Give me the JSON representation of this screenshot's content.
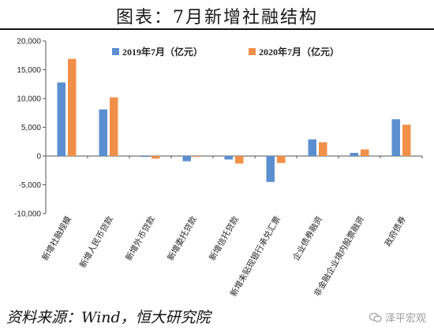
{
  "title": "图表：7月新增社融结构",
  "source": "资料来源：Wind，恒大研究院",
  "watermark": "泽平宏观",
  "colors": {
    "series_2019": "#5B8FD0",
    "series_2020": "#F0904A"
  },
  "chart_data": {
    "type": "bar",
    "categories": [
      "新增社融规模",
      "新增人民币贷款",
      "新增外币贷款",
      "新增委托贷款",
      "新增信托贷款",
      "新增未贴现银行承兑汇票",
      "企业债券融资",
      "非金融企业境内股票融资",
      "政府债券"
    ],
    "series": [
      {
        "name": "2019年7月（亿元）",
        "values": [
          12800,
          8100,
          -150,
          -900,
          -600,
          -4500,
          2900,
          550,
          6400
        ]
      },
      {
        "name": "2020年7月（亿元）",
        "values": [
          16900,
          10200,
          -450,
          -150,
          -1300,
          -1200,
          2400,
          1150,
          5450
        ]
      }
    ],
    "ylim": [
      -10000,
      20000
    ],
    "yticks": [
      "20,000",
      "15,000",
      "10,000",
      "5,000",
      "0",
      "-5,000",
      "-10,000"
    ],
    "ytick_values": [
      20000,
      15000,
      10000,
      5000,
      0,
      -5000,
      -10000
    ],
    "legend_position": "top",
    "grid": false
  }
}
